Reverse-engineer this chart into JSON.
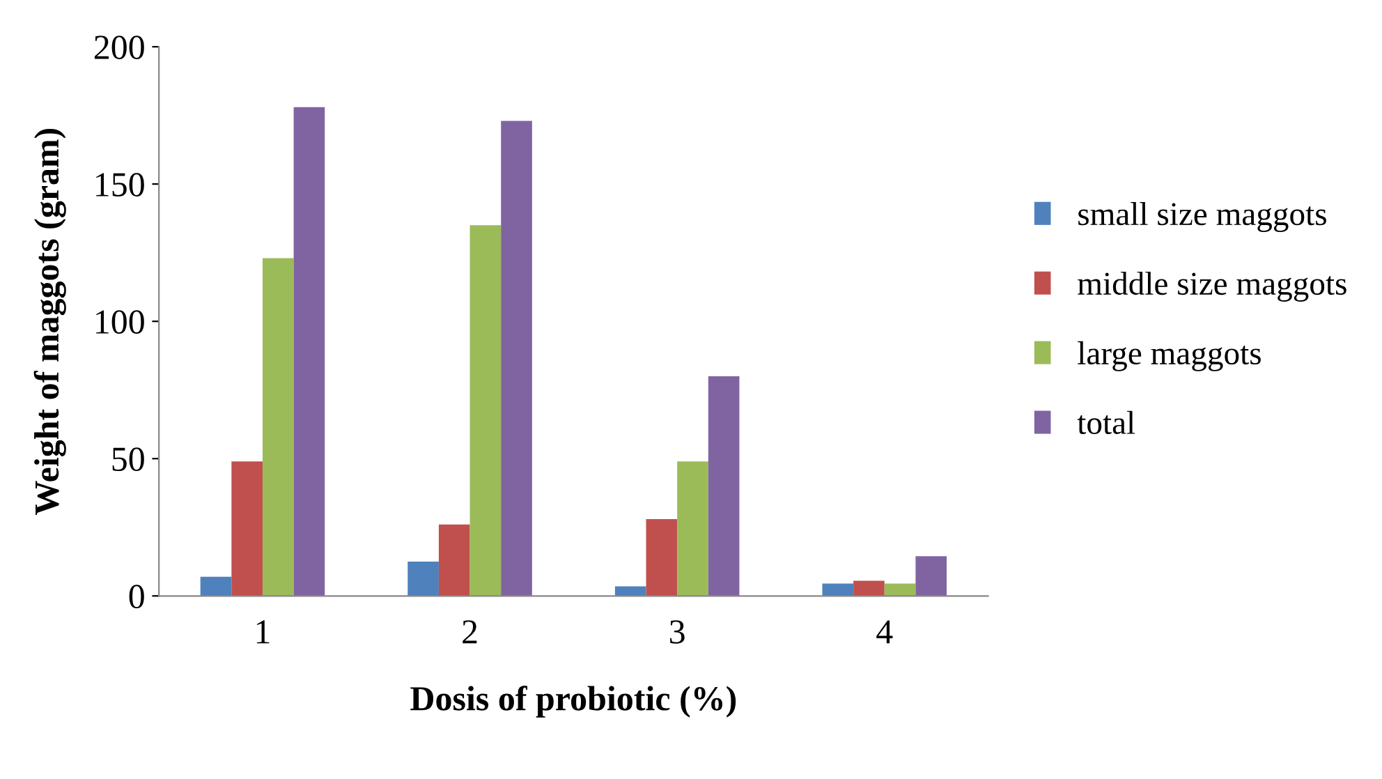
{
  "chart_data": {
    "type": "bar",
    "xlabel": "Dosis of probiotic (%)",
    "ylabel": "Weight of maggots (gram)",
    "categories": [
      "1",
      "2",
      "3",
      "4"
    ],
    "series": [
      {
        "name": "small size maggots",
        "color": "#4f81bd",
        "values": [
          7,
          12.5,
          3.5,
          4.5
        ]
      },
      {
        "name": "middle size maggots",
        "color": "#c0504d",
        "values": [
          49,
          26,
          28,
          5.5
        ]
      },
      {
        "name": "large maggots",
        "color": "#9bbb59",
        "values": [
          123,
          135,
          49,
          4.5
        ]
      },
      {
        "name": "total",
        "color": "#8064a2",
        "values": [
          178,
          173,
          80,
          14.5
        ]
      }
    ],
    "ylim": [
      0,
      200
    ],
    "yticks": [
      0,
      50,
      100,
      150,
      200
    ],
    "grid": false,
    "legend": "right"
  }
}
